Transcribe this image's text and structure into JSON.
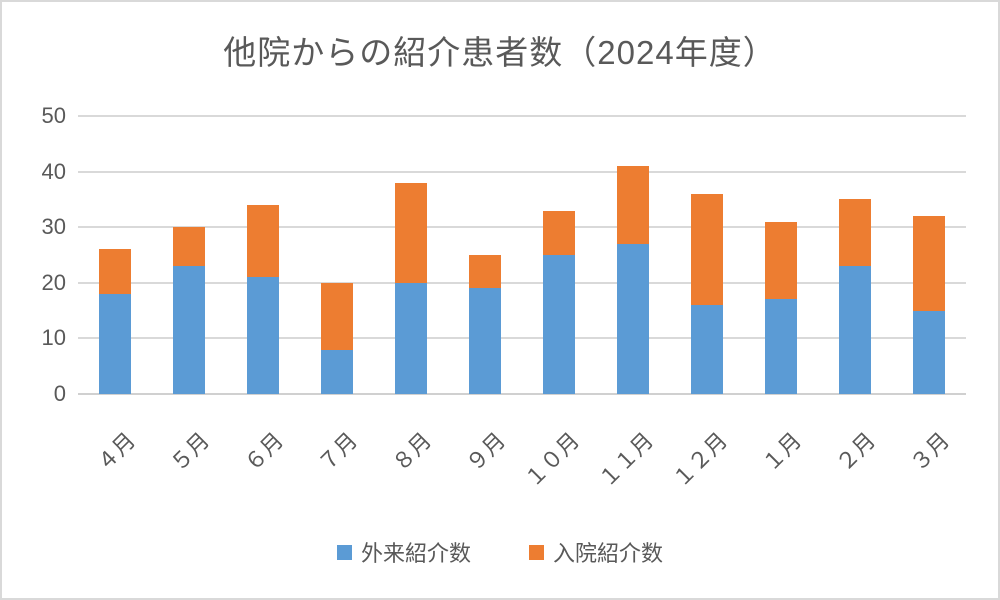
{
  "chart_title": "他院からの紹介患者数（2024年度）",
  "chart_data": {
    "type": "bar",
    "stacked": true,
    "title": "他院からの紹介患者数（2024年度）",
    "categories": [
      "４月",
      "５月",
      "６月",
      "７月",
      "８月",
      "９月",
      "１０月",
      "１１月",
      "１２月",
      "１月",
      "２月",
      "３月"
    ],
    "series": [
      {
        "name": "外来紹介数",
        "color": "#5b9bd5",
        "values": [
          18,
          23,
          21,
          8,
          20,
          19,
          25,
          27,
          16,
          17,
          23,
          15
        ]
      },
      {
        "name": "入院紹介数",
        "color": "#ed7d31",
        "values": [
          8,
          7,
          13,
          12,
          18,
          6,
          8,
          14,
          20,
          14,
          12,
          17
        ]
      }
    ],
    "totals": [
      26,
      30,
      34,
      20,
      38,
      25,
      33,
      41,
      36,
      31,
      35,
      32
    ],
    "xlabel": "",
    "ylabel": "",
    "ylim": [
      0,
      50
    ],
    "yticks": [
      0,
      10,
      20,
      30,
      40,
      50
    ],
    "grid": true,
    "legend_position": "bottom",
    "colors": {
      "grid": "#d9d9d9",
      "text": "#595959",
      "background": "#ffffff"
    }
  }
}
